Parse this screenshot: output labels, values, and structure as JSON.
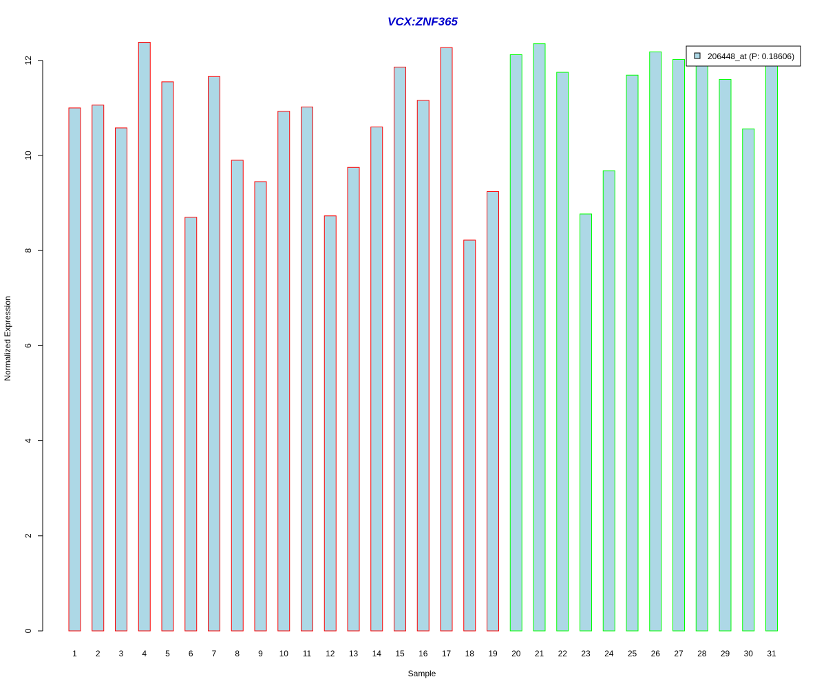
{
  "chart_data": {
    "type": "bar",
    "title": "VCX:ZNF365",
    "xlabel": "Sample",
    "ylabel": "Normalized Expression",
    "ylim": [
      0,
      12.5
    ],
    "yticks": [
      "0",
      "2",
      "4",
      "6",
      "8",
      "10",
      "12"
    ],
    "grid": false,
    "legend_position": "top-right",
    "categories": [
      "1",
      "2",
      "3",
      "4",
      "5",
      "6",
      "7",
      "8",
      "9",
      "10",
      "11",
      "12",
      "13",
      "14",
      "15",
      "16",
      "17",
      "18",
      "19",
      "20",
      "21",
      "22",
      "23",
      "24",
      "25",
      "26",
      "27",
      "28",
      "29",
      "30",
      "31"
    ],
    "series": [
      {
        "name": "206448_at (P: 0.18606)",
        "values": [
          11.0,
          11.06,
          10.58,
          12.38,
          11.55,
          8.7,
          11.66,
          9.9,
          9.45,
          10.93,
          11.02,
          8.73,
          9.75,
          10.6,
          11.86,
          11.16,
          12.27,
          8.22,
          9.24,
          12.12,
          12.35,
          11.75,
          8.77,
          9.68,
          11.69,
          12.18,
          12.02,
          11.94,
          11.6,
          10.56,
          11.94
        ]
      }
    ],
    "bar_fill_color": "#add8e6",
    "bar_border_colors": [
      "#ff0000",
      "#ff0000",
      "#ff0000",
      "#ff0000",
      "#ff0000",
      "#ff0000",
      "#ff0000",
      "#ff0000",
      "#ff0000",
      "#ff0000",
      "#ff0000",
      "#ff0000",
      "#ff0000",
      "#ff0000",
      "#ff0000",
      "#ff0000",
      "#ff0000",
      "#ff0000",
      "#ff0000",
      "#00ff00",
      "#00ff00",
      "#00ff00",
      "#00ff00",
      "#00ff00",
      "#00ff00",
      "#00ff00",
      "#00ff00",
      "#00ff00",
      "#00ff00",
      "#00ff00",
      "#00ff00"
    ],
    "title_color": "#0000cc"
  }
}
